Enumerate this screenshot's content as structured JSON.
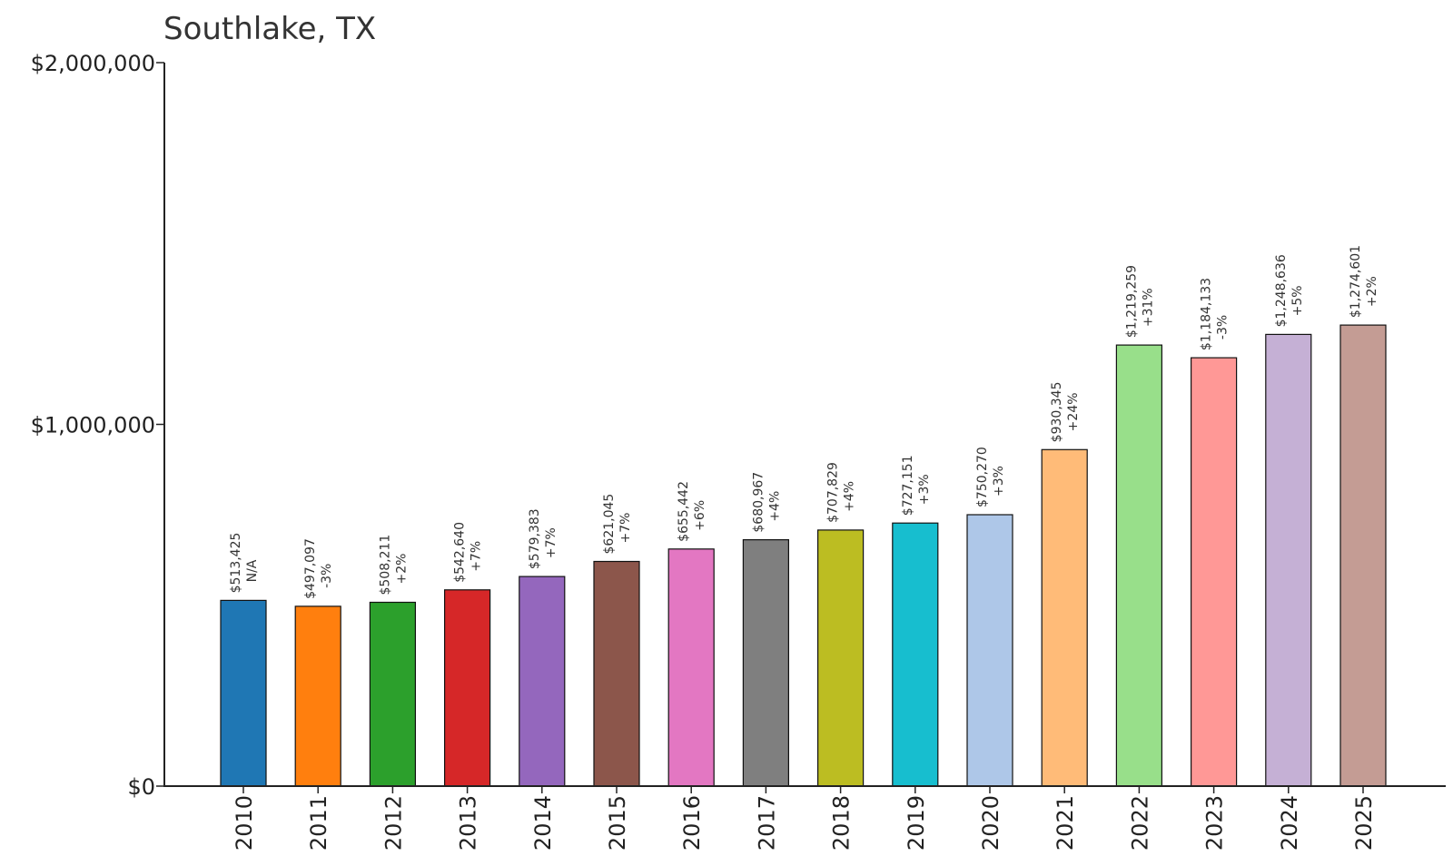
{
  "chart_data": {
    "type": "bar",
    "title": "Southlake, TX",
    "xlabel": "",
    "ylabel": "",
    "ylim": [
      0,
      2000000
    ],
    "yticks": [
      0,
      1000000,
      2000000
    ],
    "ytick_labels": [
      "$0",
      "$1,000,000",
      "$2,000,000"
    ],
    "grid": false,
    "legend": "none",
    "categories": [
      "2010",
      "2011",
      "2012",
      "2013",
      "2014",
      "2015",
      "2016",
      "2017",
      "2018",
      "2019",
      "2020",
      "2021",
      "2022",
      "2023",
      "2024",
      "2025"
    ],
    "values": [
      513425,
      497097,
      508211,
      542640,
      579383,
      621045,
      655442,
      680967,
      707829,
      727151,
      750270,
      930345,
      1219259,
      1184133,
      1248636,
      1274601
    ],
    "value_labels": [
      "$513,425",
      "$497,097",
      "$508,211",
      "$542,640",
      "$579,383",
      "$621,045",
      "$655,442",
      "$680,967",
      "$707,829",
      "$727,151",
      "$750,270",
      "$930,345",
      "$1,219,259",
      "$1,184,133",
      "$1,248,636",
      "$1,274,601"
    ],
    "change_labels": [
      "N/A",
      "-3%",
      "+2%",
      "+7%",
      "+7%",
      "+7%",
      "+6%",
      "+4%",
      "+4%",
      "+3%",
      "+3%",
      "+24%",
      "+31%",
      "-3%",
      "+5%",
      "+2%"
    ],
    "colors": [
      "#1f77b4",
      "#ff7f0e",
      "#2ca02c",
      "#d62728",
      "#9467bd",
      "#8c564b",
      "#e377c2",
      "#7f7f7f",
      "#bcbd22",
      "#17becf",
      "#aec7e8",
      "#ffbb78",
      "#98df8a",
      "#ff9896",
      "#c5b0d5",
      "#c49c94"
    ]
  }
}
